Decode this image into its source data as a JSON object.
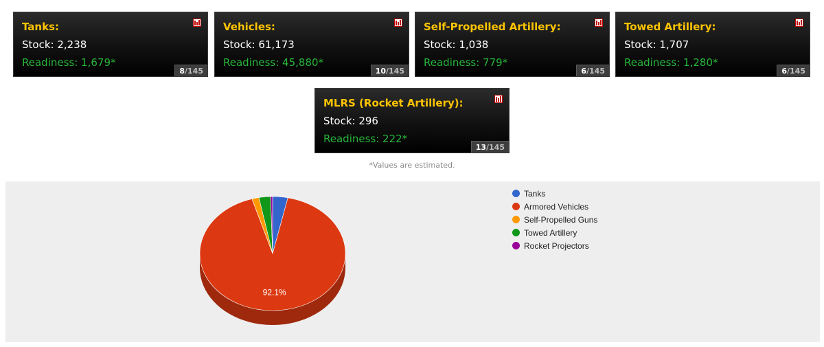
{
  "cards": [
    {
      "title": "Tanks:",
      "stock": "Stock: 2,238",
      "readiness": "Readiness: 1,679*",
      "rank": "8",
      "total": "/145"
    },
    {
      "title": "Vehicles:",
      "stock": "Stock: 61,173",
      "readiness": "Readiness: 45,880*",
      "rank": "10",
      "total": "/145"
    },
    {
      "title": "Self-Propelled Artillery:",
      "stock": "Stock: 1,038",
      "readiness": "Readiness: 779*",
      "rank": "6",
      "total": "/145"
    },
    {
      "title": "Towed Artillery:",
      "stock": "Stock: 1,707",
      "readiness": "Readiness: 1,280*",
      "rank": "6",
      "total": "/145"
    },
    {
      "title": "MLRS (Rocket Artillery):",
      "stock": "Stock: 296",
      "readiness": "Readiness: 222*",
      "rank": "13",
      "total": "/145"
    }
  ],
  "note": "*Values are estimated.",
  "colors": {
    "title": "#ffc400",
    "readiness": "#27b63a"
  },
  "chart_data": {
    "type": "pie",
    "labels": [
      "Tanks",
      "Armored Vehicles",
      "Self-Propelled Guns",
      "Towed Artillery",
      "Rocket Projectors"
    ],
    "values": [
      2238,
      61173,
      1038,
      1707,
      296
    ],
    "colors": [
      "#3366cc",
      "#dc3912",
      "#ff9900",
      "#109618",
      "#990099"
    ],
    "data_labels": [
      "",
      "92.1%",
      "",
      "",
      ""
    ],
    "legend_position": "right",
    "style": "3d"
  }
}
